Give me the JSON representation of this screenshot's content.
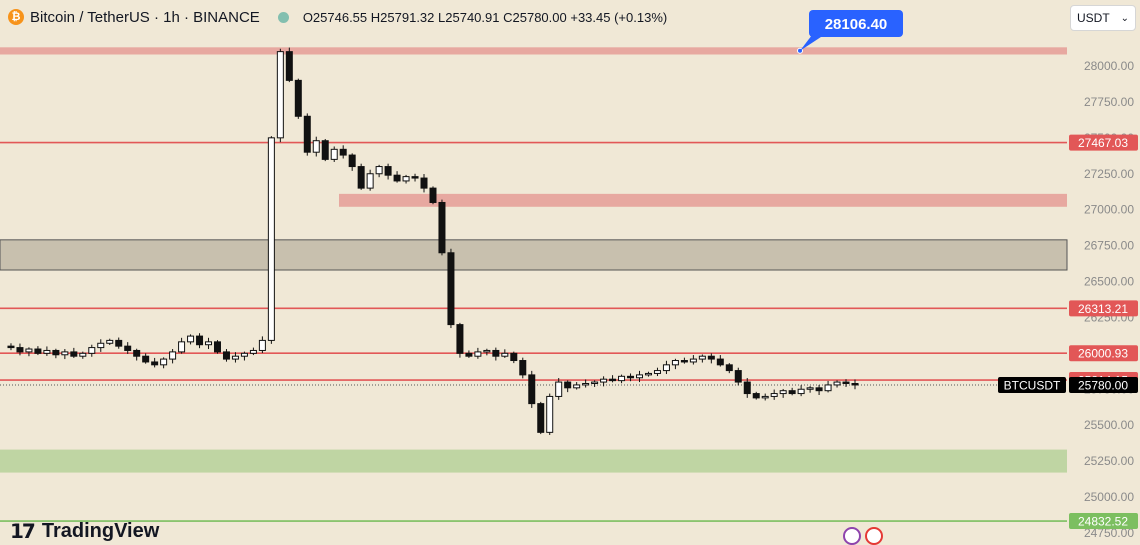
{
  "header": {
    "symbol": "Bitcoin / TetherUS · 1h · BINANCE",
    "coin_glyph": "₿",
    "open": "O25746.55",
    "high": "H25791.32",
    "low": "L25740.91",
    "close": "C25780.00",
    "change": "+33.45 (+0.13%)"
  },
  "currency_select": {
    "value": "USDT",
    "icon": "chevron-down-icon"
  },
  "branding": {
    "logo_mark": "𝟭𝟳",
    "name": "TradingView"
  },
  "colors": {
    "background": "#f0e8d6",
    "red_line": "#e25757",
    "red_zone": "#e7a8a0",
    "grey_zone": "#c8c0ae",
    "green_zone": "#bfd5a3",
    "green_line": "#7cbf60",
    "label_bg": "#000000",
    "callout": "#2962ff"
  },
  "chart_data": {
    "type": "candlestick",
    "symbol": "BTCUSDT",
    "timeframe": "1h",
    "y_range": [
      24720,
      28250
    ],
    "y_ticks": [
      24750,
      25000,
      25250,
      25500,
      25750,
      26000,
      26250,
      26500,
      26750,
      27000,
      27250,
      27500,
      27750,
      28000
    ],
    "horizontal_lines": [
      {
        "price": 27467.03,
        "label": "27467.03",
        "kind": "resistance"
      },
      {
        "price": 26313.21,
        "label": "26313.21",
        "kind": "resistance"
      },
      {
        "price": 26000.93,
        "label": "26000.93",
        "kind": "resistance"
      },
      {
        "price": 25814.15,
        "label": "25814.15",
        "kind": "resistance"
      },
      {
        "price": 24832.52,
        "label": "24832.52",
        "kind": "support"
      }
    ],
    "zones": [
      {
        "from": 28080,
        "to": 28130,
        "kind": "red"
      },
      {
        "from": 27020,
        "to": 27110,
        "kind": "red"
      },
      {
        "from": 26580,
        "to": 26790,
        "kind": "grey"
      },
      {
        "from": 25170,
        "to": 25330,
        "kind": "green"
      }
    ],
    "callout": {
      "price": 28106.4,
      "label": "28106.40"
    },
    "last_price": {
      "price": 25780.0,
      "label": "25780.00",
      "tag": "BTCUSDT"
    },
    "close_path": [
      26050,
      26040,
      26010,
      26030,
      26000,
      26020,
      25990,
      26010,
      25980,
      26000,
      26040,
      26070,
      26090,
      26050,
      26020,
      25980,
      25940,
      25920,
      25960,
      26010,
      26080,
      26120,
      26060,
      26080,
      26010,
      25960,
      25980,
      26000,
      26020,
      26090,
      27500,
      28100,
      27900,
      27650,
      27400,
      27480,
      27350,
      27420,
      27380,
      27300,
      27150,
      27250,
      27300,
      27240,
      27200,
      27230,
      27220,
      27150,
      27050,
      26700,
      26200,
      26000,
      25980,
      26010,
      26020,
      25980,
      26000,
      25950,
      25850,
      25650,
      25450,
      25700,
      25800,
      25760,
      25780,
      25790,
      25800,
      25820,
      25810,
      25840,
      25830,
      25850,
      25860,
      25880,
      25920,
      25950,
      25940,
      25960,
      25980,
      25960,
      25920,
      25880,
      25800,
      25720,
      25690,
      25700,
      25720,
      25740,
      25720,
      25750,
      25760,
      25740,
      25780,
      25800,
      25790,
      25780
    ]
  }
}
